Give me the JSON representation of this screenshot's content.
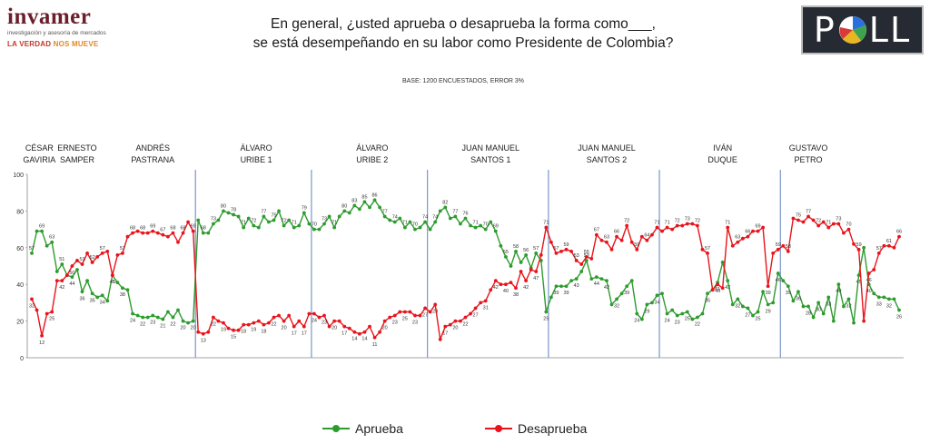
{
  "logo": {
    "word": "invamer",
    "sub": "investigación y asesoría de mercados",
    "tag1": "LA VERDAD",
    "tag2": "NOS MUEVE"
  },
  "title": {
    "line1": "En general, ¿usted aprueba o desaprueba la forma como___,",
    "line2": "se está desempeñando en su labor como Presidente de Colombia?"
  },
  "base_note": "BASE: 1200 ENCUESTADOS, ERROR 3%",
  "poll_logo": {
    "left": "P",
    "right": "LL"
  },
  "colors": {
    "approve": "#2e9b2e",
    "disapprove": "#e8141b",
    "divider": "#7a96c9",
    "term_divider": "#3a55a0"
  },
  "chart_data": {
    "type": "line",
    "ylim": [
      0,
      100
    ],
    "yticks": [
      0,
      20,
      40,
      60,
      80,
      100
    ],
    "grid": false,
    "legend_position": "bottom",
    "presidents": [
      {
        "name": [
          "CÉSAR",
          "GAVIRIA"
        ],
        "start": 0,
        "end": 3
      },
      {
        "name": [
          "ERNESTO",
          "SAMPER"
        ],
        "start": 3,
        "end": 15
      },
      {
        "name": [
          "ANDRÉS",
          "PASTRANA"
        ],
        "start": 15,
        "end": 33
      },
      {
        "name": [
          "ÁLVARO",
          "URIBE 1"
        ],
        "start": 33,
        "end": 56
      },
      {
        "name": [
          "ÁLVARO",
          "URIBE 2"
        ],
        "start": 56,
        "end": 79
      },
      {
        "name": [
          "JUAN MANUEL",
          "SANTOS 1"
        ],
        "start": 79,
        "end": 103
      },
      {
        "name": [
          "JUAN MANUEL",
          "SANTOS 2"
        ],
        "start": 103,
        "end": 125
      },
      {
        "name": [
          "IVÁN",
          "DUQUE"
        ],
        "start": 125,
        "end": 149
      },
      {
        "name": [
          "GUSTAVO",
          "PETRO"
        ],
        "start": 149,
        "end": 159
      }
    ],
    "series": [
      {
        "name": "Aprueba",
        "values": [
          57,
          69,
          69,
          61,
          63,
          47,
          51,
          45,
          44,
          48,
          36,
          42,
          35,
          33,
          34,
          31,
          45,
          41,
          38,
          37,
          24,
          23,
          22,
          22,
          23,
          22,
          21,
          25,
          22,
          26,
          20,
          19,
          20,
          75,
          68,
          68,
          73,
          75,
          80,
          79,
          78,
          77,
          71,
          76,
          72,
          71,
          77,
          74,
          75,
          80,
          72,
          75,
          71,
          72,
          79,
          73,
          70,
          70,
          73,
          77,
          71,
          77,
          80,
          79,
          83,
          81,
          85,
          82,
          86,
          82,
          77,
          75,
          74,
          76,
          71,
          74,
          70,
          71,
          74,
          70,
          74,
          80,
          82,
          76,
          77,
          73,
          76,
          72,
          71,
          72,
          70,
          74,
          69,
          61,
          55,
          50,
          58,
          52,
          56,
          49,
          57,
          53,
          25,
          33,
          39,
          39,
          39,
          42,
          43,
          47,
          53,
          43,
          44,
          43,
          42,
          29,
          32,
          35,
          39,
          42,
          24,
          21,
          29,
          30,
          34,
          35,
          24,
          26,
          23,
          24,
          25,
          21,
          22,
          24,
          35,
          37,
          41,
          52,
          42,
          29,
          32,
          28,
          27,
          23,
          25,
          36,
          29,
          30,
          46,
          42,
          39,
          31,
          36,
          28,
          28,
          22,
          30,
          24,
          33,
          20,
          40,
          28,
          32,
          19,
          45,
          60,
          40,
          35,
          33,
          33,
          32,
          32,
          26
        ]
      },
      {
        "name": "Desaprueba",
        "values": [
          32,
          26,
          12,
          24,
          25,
          42,
          42,
          45,
          50,
          53,
          51,
          57,
          52,
          55,
          57,
          58,
          45,
          56,
          57,
          66,
          68,
          69,
          68,
          68,
          69,
          68,
          67,
          66,
          68,
          63,
          68,
          74,
          69,
          14,
          13,
          14,
          22,
          20,
          19,
          16,
          15,
          15,
          18,
          18,
          19,
          20,
          18,
          19,
          22,
          23,
          20,
          23,
          17,
          20,
          17,
          24,
          24,
          22,
          23,
          17,
          20,
          20,
          17,
          16,
          14,
          13,
          14,
          17,
          11,
          14,
          20,
          22,
          23,
          25,
          25,
          25,
          23,
          23,
          27,
          25,
          29,
          10,
          17,
          18,
          20,
          20,
          22,
          24,
          27,
          30,
          31,
          37,
          42,
          40,
          40,
          41,
          38,
          47,
          42,
          48,
          47,
          56,
          71,
          63,
          57,
          58,
          59,
          58,
          53,
          51,
          55,
          54,
          67,
          64,
          63,
          59,
          66,
          64,
          72,
          63,
          59,
          66,
          64,
          67,
          71,
          69,
          71,
          70,
          72,
          72,
          73,
          73,
          72,
          59,
          57,
          37,
          40,
          38,
          71,
          61,
          63,
          65,
          66,
          69,
          69,
          71,
          39,
          57,
          59,
          61,
          58,
          76,
          75,
          74,
          77,
          75,
          72,
          74,
          71,
          73,
          73,
          68,
          70,
          62,
          59,
          20,
          46,
          48,
          57,
          61,
          61,
          60,
          66
        ]
      }
    ],
    "term_dividers": [
      33,
      56,
      79,
      103,
      125,
      149
    ]
  },
  "legend": {
    "approve": "Aprueba",
    "disapprove": "Desaprueba"
  }
}
